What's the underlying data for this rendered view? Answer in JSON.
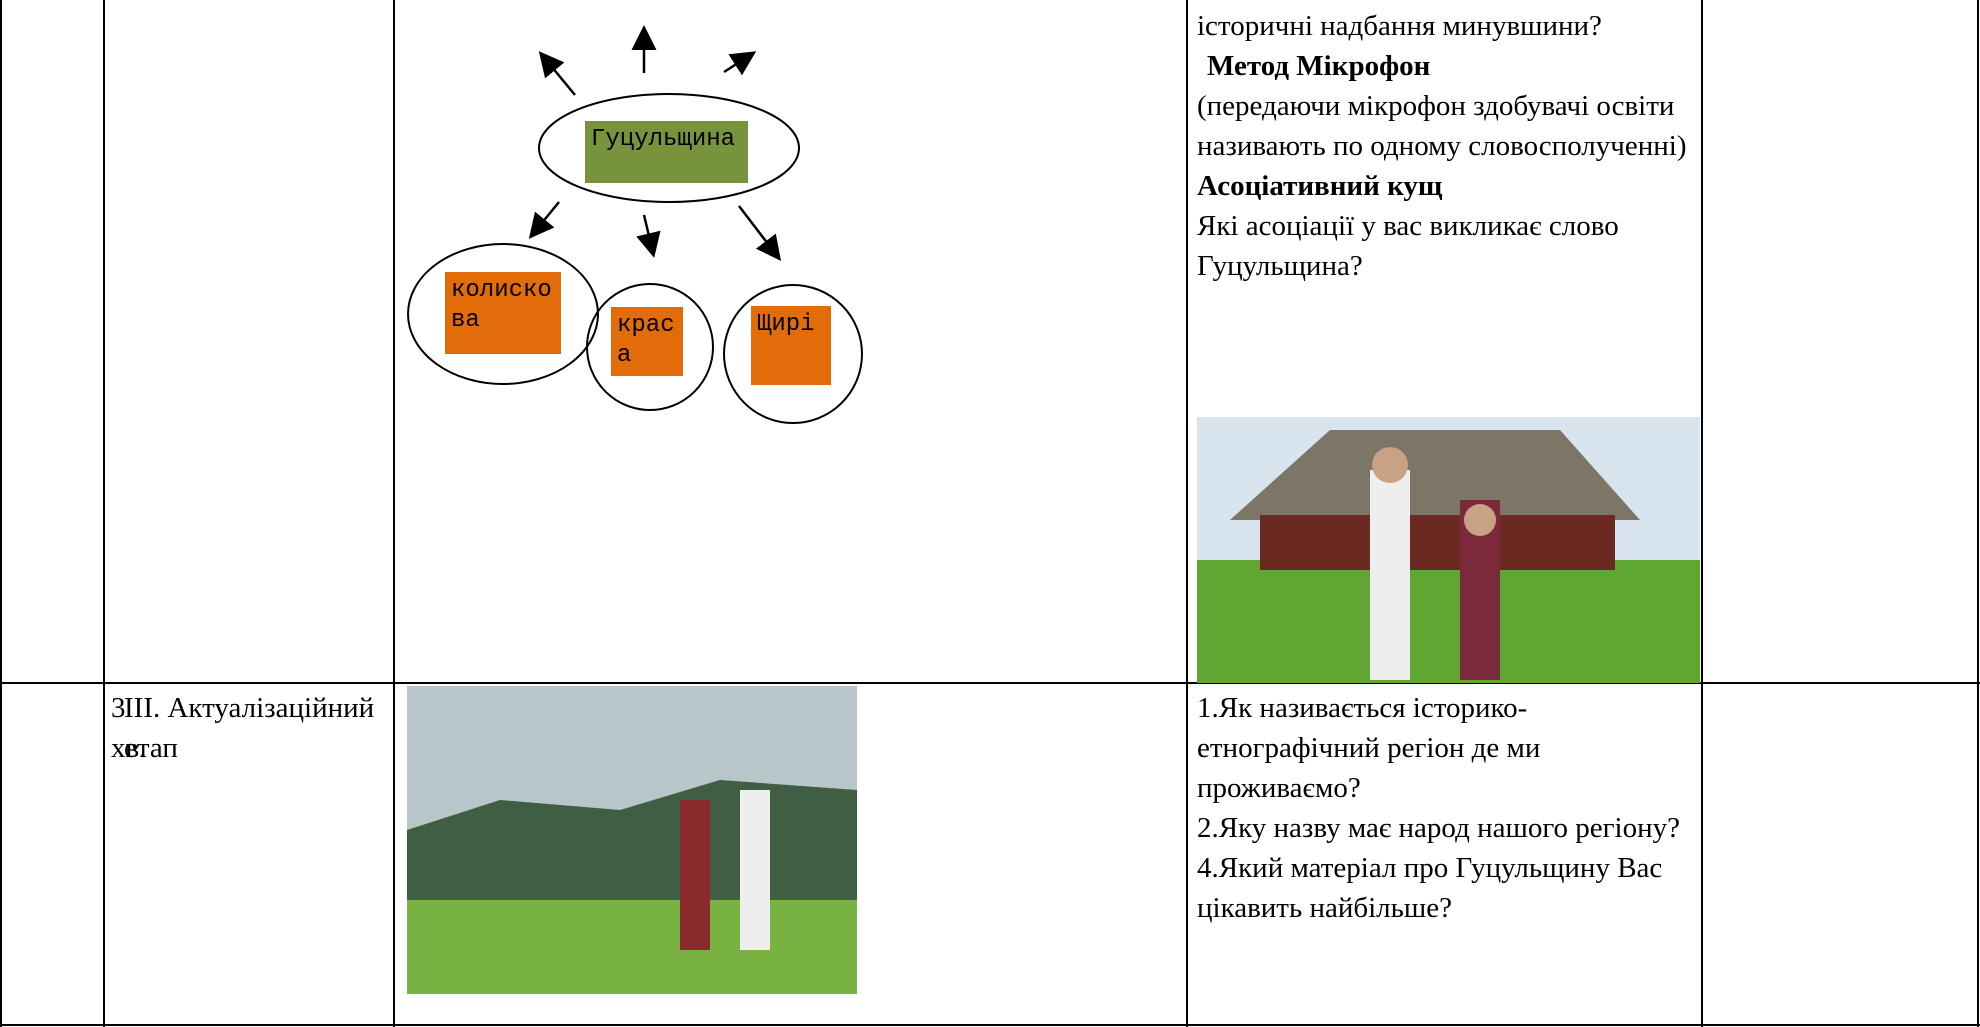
{
  "table": {
    "rows": [
      {
        "cells": [
          null,
          null,
          {
            "diagram": {
              "center": "Гуцульщина",
              "nodes": [
                "колискова",
                "краса",
                "Щирі"
              ]
            }
          },
          {
            "paragraphs": [
              {
                "text": "історичні надбання минувшини?"
              },
              {
                "text": "Метод Мікрофон"
              },
              {
                "text": "(передаючи мікрофон здобувачі освіти називають по одному словосполученні)"
              },
              {
                "text": "Асоціативний кущ"
              },
              {
                "text": "Які асоціації у вас викликає слово Гуцульщина?"
              }
            ]
          },
          null
        ]
      },
      {
        "cells": [
          {
            "text": "3 хв."
          },
          {
            "text": "ІІІ. Актуалізаційний етап"
          },
          null,
          {
            "paragraphs": [
              {
                "text": "1.Як називається історико-етнографічний регіон де ми проживаємо?"
              },
              {
                "text": "2.Яку назву має народ нашого регіону?"
              },
              {
                "text": "4.Який матеріал про Гуцульщину Вас цікавить найбільше?"
              }
            ]
          },
          null
        ]
      }
    ]
  }
}
